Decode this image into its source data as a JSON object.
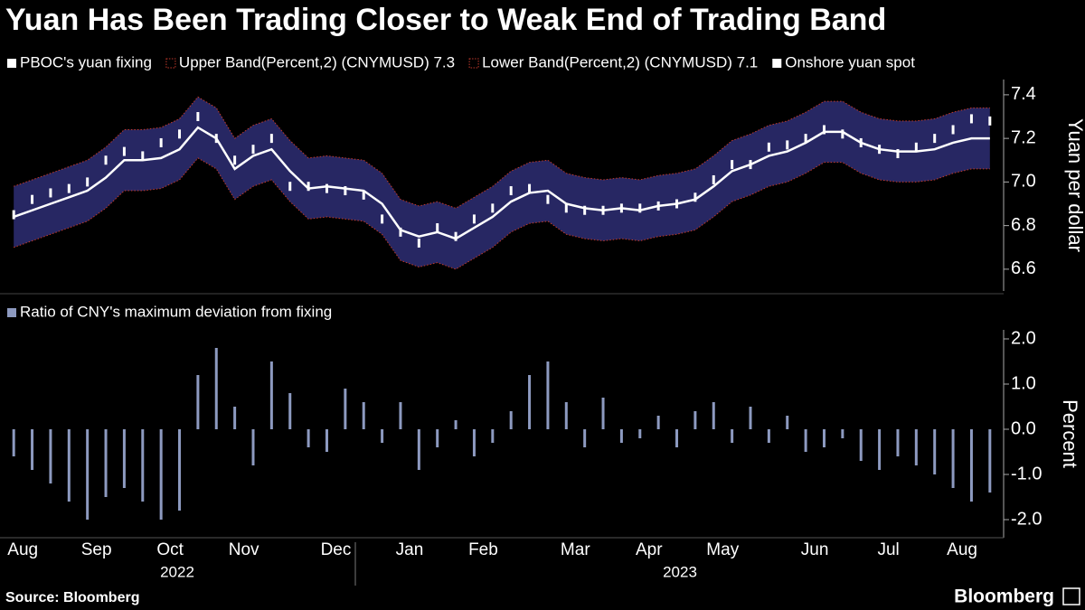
{
  "chart_data": [
    {
      "type": "line",
      "title": "Yuan Has Been Trading Closer to Weak End of Trading Band",
      "ylabel": "Yuan per dollar",
      "ylim": [
        6.5,
        7.47
      ],
      "yticks": [
        6.6,
        6.8,
        {
          "value": 7,
          "label": "7.0"
        },
        7.2,
        7.4
      ],
      "band_fill": "#272763",
      "series": [
        {
          "name": "PBOC's yuan fixing",
          "color": "#ffffff",
          "mark": "line",
          "values": [
            6.84,
            6.87,
            6.9,
            6.93,
            6.96,
            7.02,
            7.1,
            7.1,
            7.11,
            7.15,
            7.25,
            7.2,
            7.06,
            7.12,
            7.15,
            7.05,
            6.97,
            6.98,
            6.97,
            6.96,
            6.9,
            6.78,
            6.75,
            6.77,
            6.74,
            6.79,
            6.84,
            6.91,
            6.95,
            6.96,
            6.9,
            6.88,
            6.87,
            6.88,
            6.87,
            6.89,
            6.9,
            6.92,
            6.98,
            7.05,
            7.08,
            7.12,
            7.14,
            7.18,
            7.23,
            7.23,
            7.18,
            7.15,
            7.14,
            7.14,
            7.15,
            7.18,
            7.2,
            7.2
          ]
        },
        {
          "name": "Upper Band(Percent,2) (CNYMUSD) 7.3",
          "color": "#c0392b",
          "mark": "band-upper",
          "values": [
            6.98,
            7.01,
            7.04,
            7.07,
            7.1,
            7.16,
            7.24,
            7.24,
            7.25,
            7.29,
            7.39,
            7.34,
            7.2,
            7.26,
            7.29,
            7.19,
            7.11,
            7.12,
            7.11,
            7.1,
            7.04,
            6.92,
            6.89,
            6.91,
            6.88,
            6.93,
            6.98,
            7.05,
            7.09,
            7.1,
            7.04,
            7.02,
            7.01,
            7.02,
            7.01,
            7.03,
            7.04,
            7.06,
            7.12,
            7.19,
            7.22,
            7.26,
            7.28,
            7.32,
            7.37,
            7.37,
            7.32,
            7.29,
            7.28,
            7.28,
            7.29,
            7.32,
            7.34,
            7.34
          ]
        },
        {
          "name": "Lower Band(Percent,2) (CNYMUSD) 7.1",
          "color": "#c0392b",
          "mark": "band-lower",
          "values": [
            6.7,
            6.73,
            6.76,
            6.79,
            6.82,
            6.88,
            6.96,
            6.96,
            6.97,
            7.01,
            7.11,
            7.06,
            6.92,
            6.98,
            7.01,
            6.91,
            6.83,
            6.84,
            6.83,
            6.82,
            6.76,
            6.64,
            6.61,
            6.63,
            6.6,
            6.65,
            6.7,
            6.77,
            6.81,
            6.82,
            6.76,
            6.74,
            6.73,
            6.74,
            6.73,
            6.75,
            6.76,
            6.78,
            6.84,
            6.91,
            6.94,
            6.98,
            7.0,
            7.04,
            7.09,
            7.09,
            7.04,
            7.01,
            7.0,
            7.0,
            7.01,
            7.04,
            7.06,
            7.06
          ]
        },
        {
          "name": "Onshore yuan spot",
          "color": "#ffffff",
          "mark": "tick",
          "values": [
            6.85,
            6.92,
            6.95,
            6.97,
            7.0,
            7.1,
            7.14,
            7.12,
            7.18,
            7.22,
            7.3,
            7.2,
            7.1,
            7.15,
            7.2,
            6.98,
            6.98,
            6.97,
            6.96,
            6.94,
            6.83,
            6.77,
            6.72,
            6.79,
            6.75,
            6.83,
            6.88,
            6.96,
            6.97,
            6.92,
            6.88,
            6.87,
            6.87,
            6.88,
            6.88,
            6.89,
            6.9,
            6.93,
            7.01,
            7.08,
            7.08,
            7.16,
            7.17,
            7.2,
            7.24,
            7.22,
            7.18,
            7.15,
            7.13,
            7.16,
            7.2,
            7.24,
            7.29,
            7.28
          ]
        }
      ]
    },
    {
      "type": "bar",
      "ylabel": "Percent",
      "ylim": [
        -2.4,
        2.2
      ],
      "yticks": [
        {
          "value": -2,
          "label": "-2.0"
        },
        {
          "value": -1,
          "label": "-1.0"
        },
        {
          "value": 0,
          "label": "0.0"
        },
        {
          "value": 1,
          "label": "1.0"
        },
        {
          "value": 2,
          "label": "2.0"
        }
      ],
      "categories": [
        "Aug",
        null,
        null,
        null,
        "Sep",
        null,
        null,
        null,
        "Oct",
        null,
        null,
        null,
        "Nov",
        null,
        null,
        null,
        null,
        "Dec",
        null,
        null,
        null,
        "Jan",
        null,
        null,
        null,
        "Feb",
        null,
        null,
        null,
        null,
        "Mar",
        null,
        null,
        null,
        "Apr",
        null,
        null,
        null,
        "May",
        null,
        null,
        null,
        null,
        "Jun",
        null,
        null,
        null,
        "Jul",
        null,
        null,
        null,
        "Aug",
        null,
        null
      ],
      "years": [
        "2022",
        "2023"
      ],
      "series": [
        {
          "name": "Ratio of CNY's maximum deviation from fixing",
          "color": "#8d9ac0",
          "values": [
            -0.6,
            -0.9,
            -1.2,
            -1.6,
            -2.0,
            -1.5,
            -1.3,
            -1.6,
            -2.0,
            -1.8,
            1.2,
            1.8,
            0.5,
            -0.8,
            1.5,
            0.8,
            -0.4,
            -0.5,
            0.9,
            0.6,
            -0.3,
            0.6,
            -0.9,
            -0.4,
            0.2,
            -0.6,
            -0.3,
            0.4,
            1.2,
            1.5,
            0.6,
            -0.4,
            0.7,
            -0.3,
            -0.2,
            0.3,
            -0.4,
            0.4,
            0.6,
            -0.3,
            0.5,
            -0.3,
            0.3,
            -0.5,
            -0.4,
            -0.2,
            -0.7,
            -0.9,
            -0.6,
            -0.8,
            -1.0,
            -1.3,
            -1.6,
            -1.4
          ]
        }
      ]
    }
  ],
  "footer": {
    "source": "Source: Bloomberg",
    "logo": "Bloomberg"
  }
}
